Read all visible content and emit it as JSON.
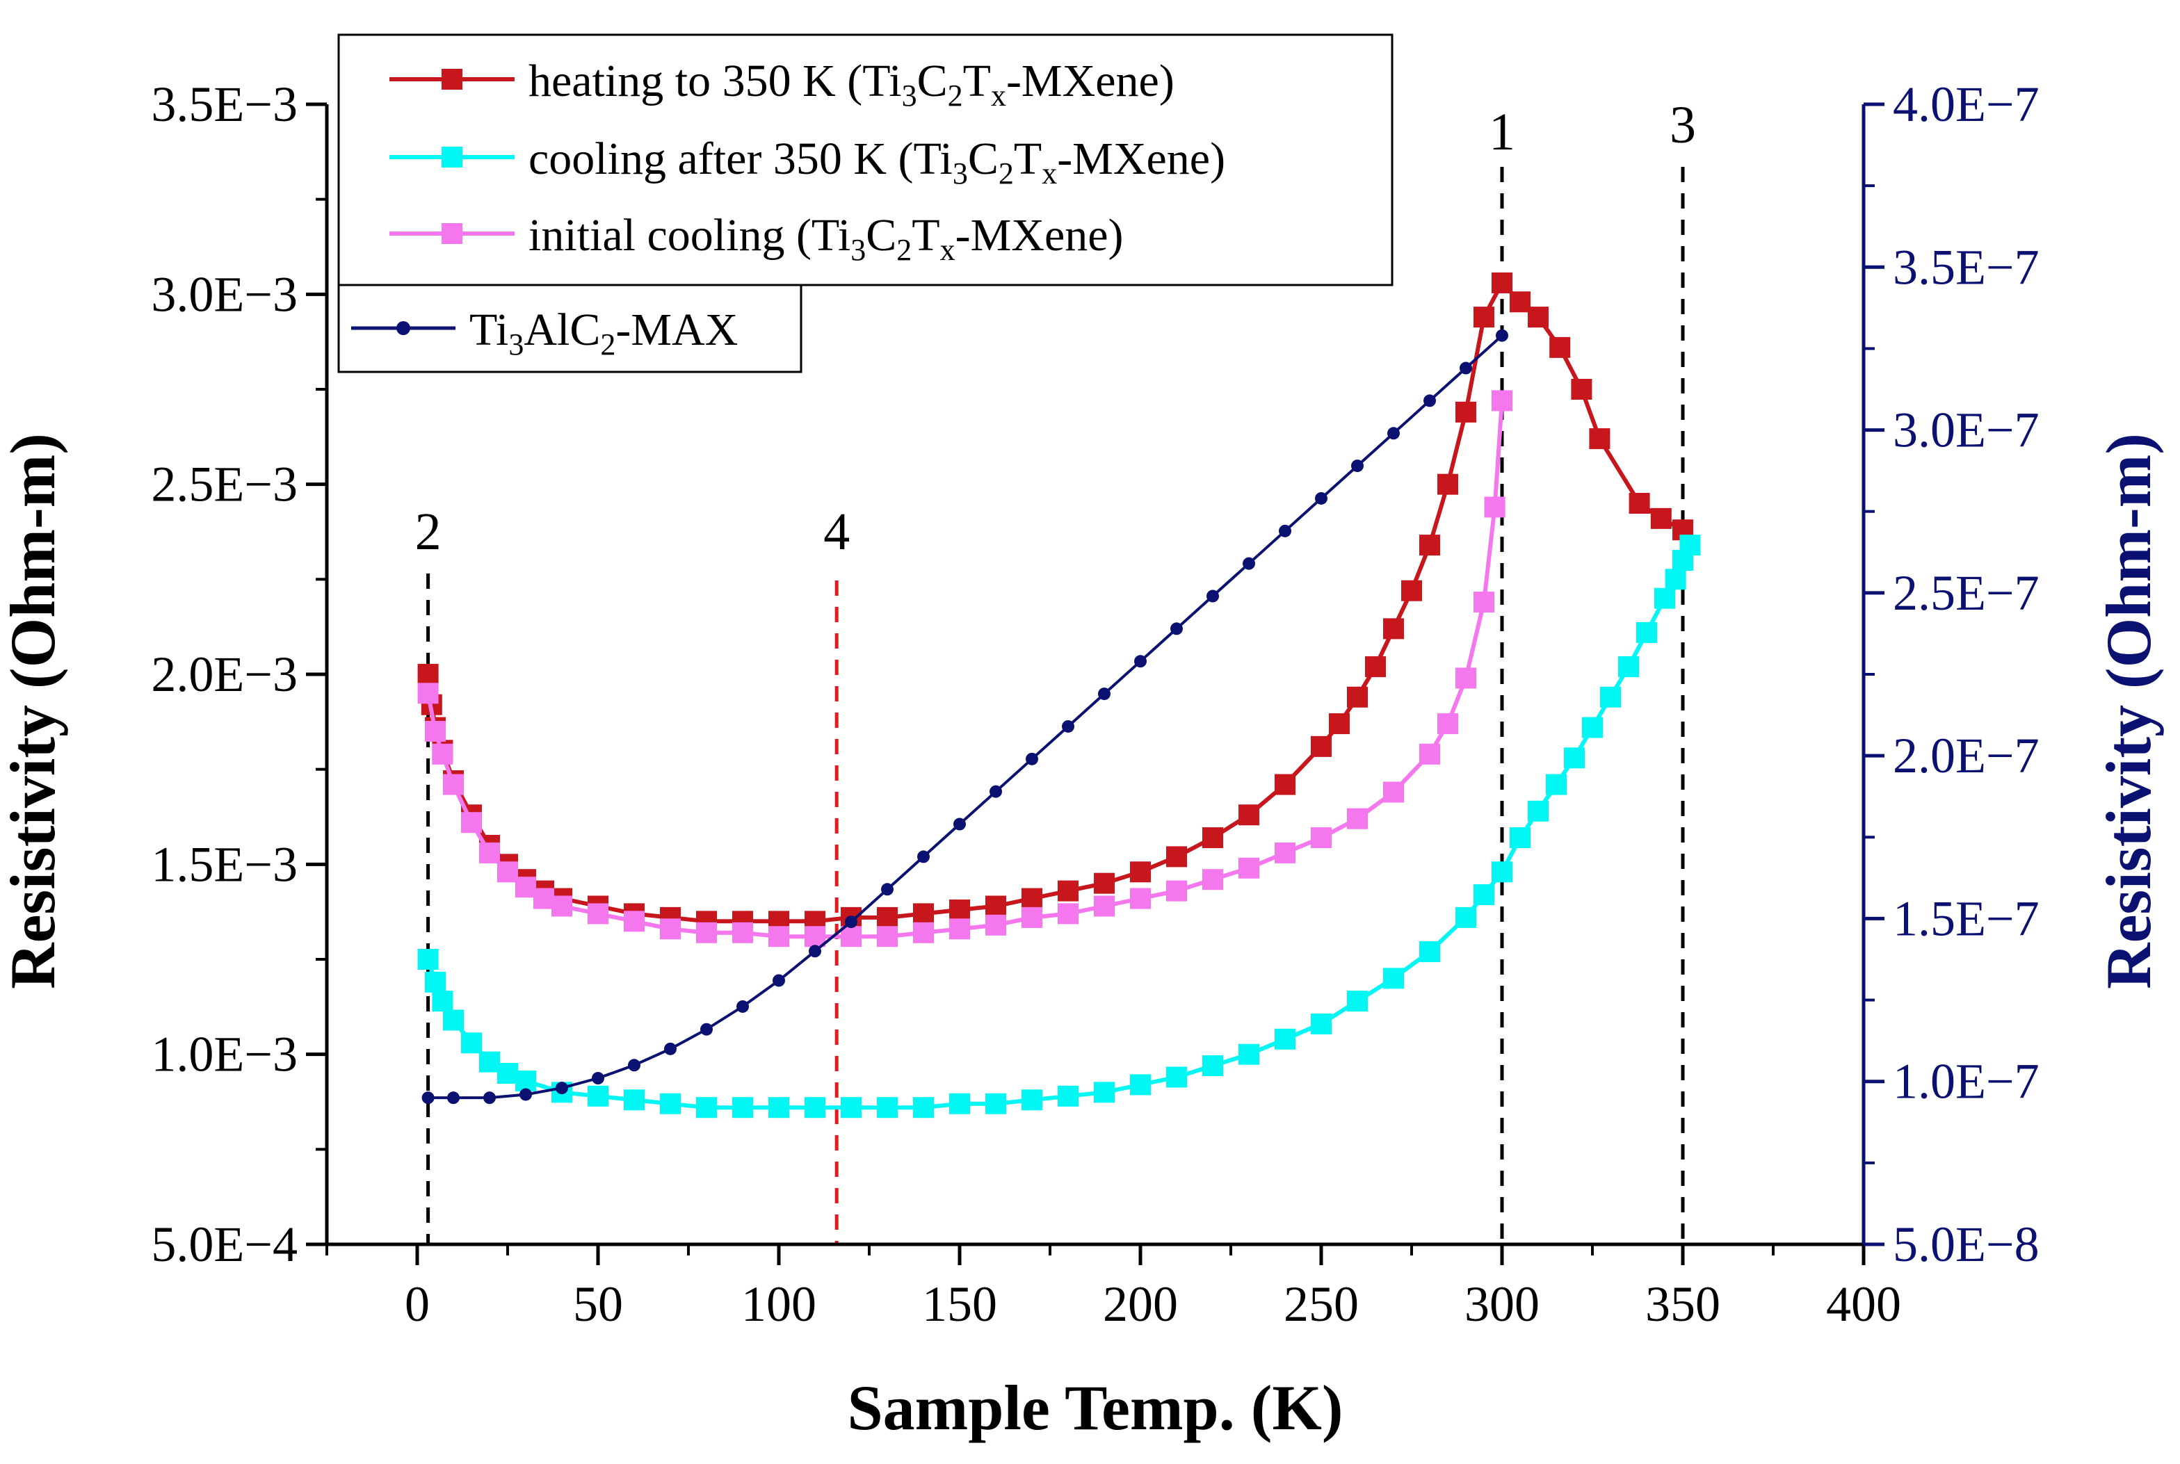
{
  "chart_data": {
    "type": "line",
    "xlabel": "Sample Temp. (K)",
    "ylabel_left": "Resistivity (Ohm-m)",
    "ylabel_right": "Resistivity (Ohm-m)",
    "xlim": [
      -25,
      400
    ],
    "ylim_left": [
      0.0005,
      0.0035
    ],
    "ylim_right": [
      5e-08,
      4e-07
    ],
    "x_ticks": [
      0,
      50,
      100,
      150,
      200,
      250,
      300,
      350,
      400
    ],
    "y_left_ticks": [
      {
        "value": 0.0005,
        "label": "5.0E−4"
      },
      {
        "value": 0.001,
        "label": "1.0E−3"
      },
      {
        "value": 0.0015,
        "label": "1.5E−3"
      },
      {
        "value": 0.002,
        "label": "2.0E−3"
      },
      {
        "value": 0.0025,
        "label": "2.5E−3"
      },
      {
        "value": 0.003,
        "label": "3.0E−3"
      },
      {
        "value": 0.0035,
        "label": "3.5E−3"
      }
    ],
    "y_right_ticks": [
      {
        "value": 5e-08,
        "label": "5.0E−8"
      },
      {
        "value": 1e-07,
        "label": "1.0E−7"
      },
      {
        "value": 1.5e-07,
        "label": "1.5E−7"
      },
      {
        "value": 2e-07,
        "label": "2.0E−7"
      },
      {
        "value": 2.5e-07,
        "label": "2.5E−7"
      },
      {
        "value": 3e-07,
        "label": "3.0E−7"
      },
      {
        "value": 3.5e-07,
        "label": "3.5E−7"
      },
      {
        "value": 4e-07,
        "label": "4.0E−7"
      }
    ],
    "legend": [
      {
        "series": "heating",
        "label": "heating to 350 K (Ti3C2Tx-MXene)"
      },
      {
        "series": "cooling_after",
        "label": "cooling after 350 K (Ti3C2Tx-MXene)"
      },
      {
        "series": "initial_cooling",
        "label": "initial cooling (Ti3C2Tx-MXene)"
      },
      {
        "series": "max",
        "label": "Ti3AlC2-MAX"
      }
    ],
    "markers": [
      {
        "label": "1",
        "x": 300,
        "color": "#000000"
      },
      {
        "label": "2",
        "x": 3,
        "color": "#000000"
      },
      {
        "label": "3",
        "x": 350,
        "color": "#000000"
      },
      {
        "label": "4",
        "x": 116,
        "color": "#e8191c"
      }
    ],
    "series": [
      {
        "name": "heating",
        "axis": "left",
        "color": "#c8161d",
        "marker": "square",
        "points": [
          [
            3,
            0.002
          ],
          [
            4,
            0.00192
          ],
          [
            5,
            0.00186
          ],
          [
            7,
            0.0018
          ],
          [
            10,
            0.00172
          ],
          [
            15,
            0.00163
          ],
          [
            20,
            0.00155
          ],
          [
            25,
            0.0015
          ],
          [
            30,
            0.00146
          ],
          [
            35,
            0.00143
          ],
          [
            40,
            0.00141
          ],
          [
            50,
            0.00139
          ],
          [
            60,
            0.00137
          ],
          [
            70,
            0.00136
          ],
          [
            80,
            0.00135
          ],
          [
            90,
            0.00135
          ],
          [
            100,
            0.00135
          ],
          [
            110,
            0.00135
          ],
          [
            120,
            0.00136
          ],
          [
            130,
            0.00136
          ],
          [
            140,
            0.00137
          ],
          [
            150,
            0.00138
          ],
          [
            160,
            0.00139
          ],
          [
            170,
            0.00141
          ],
          [
            180,
            0.00143
          ],
          [
            190,
            0.00145
          ],
          [
            200,
            0.00148
          ],
          [
            210,
            0.00152
          ],
          [
            220,
            0.00157
          ],
          [
            230,
            0.00163
          ],
          [
            240,
            0.00171
          ],
          [
            250,
            0.00181
          ],
          [
            255,
            0.00187
          ],
          [
            260,
            0.00194
          ],
          [
            265,
            0.00202
          ],
          [
            270,
            0.00212
          ],
          [
            275,
            0.00222
          ],
          [
            280,
            0.00234
          ],
          [
            285,
            0.0025
          ],
          [
            290,
            0.00269
          ],
          [
            295,
            0.00294
          ],
          [
            300,
            0.00303
          ],
          [
            305,
            0.00298
          ],
          [
            310,
            0.00294
          ],
          [
            316,
            0.00286
          ],
          [
            322,
            0.00275
          ],
          [
            327,
            0.00262
          ],
          [
            338,
            0.00245
          ],
          [
            344,
            0.00241
          ],
          [
            350,
            0.00238
          ]
        ]
      },
      {
        "name": "cooling_after",
        "axis": "left",
        "color": "#00f7f3",
        "marker": "square",
        "points": [
          [
            352,
            0.00234
          ],
          [
            350,
            0.0023
          ],
          [
            348,
            0.00225
          ],
          [
            345,
            0.0022
          ],
          [
            340,
            0.00211
          ],
          [
            335,
            0.00202
          ],
          [
            330,
            0.00194
          ],
          [
            325,
            0.00186
          ],
          [
            320,
            0.00178
          ],
          [
            315,
            0.00171
          ],
          [
            310,
            0.00164
          ],
          [
            305,
            0.00157
          ],
          [
            300,
            0.00148
          ],
          [
            295,
            0.00142
          ],
          [
            290,
            0.00136
          ],
          [
            280,
            0.00127
          ],
          [
            270,
            0.0012
          ],
          [
            260,
            0.00114
          ],
          [
            250,
            0.00108
          ],
          [
            240,
            0.00104
          ],
          [
            230,
            0.001
          ],
          [
            220,
            0.00097
          ],
          [
            210,
            0.00094
          ],
          [
            200,
            0.00092
          ],
          [
            190,
            0.0009
          ],
          [
            180,
            0.00089
          ],
          [
            170,
            0.00088
          ],
          [
            160,
            0.00087
          ],
          [
            150,
            0.00087
          ],
          [
            140,
            0.00086
          ],
          [
            130,
            0.00086
          ],
          [
            120,
            0.00086
          ],
          [
            110,
            0.00086
          ],
          [
            100,
            0.00086
          ],
          [
            90,
            0.00086
          ],
          [
            80,
            0.00086
          ],
          [
            70,
            0.00087
          ],
          [
            60,
            0.00088
          ],
          [
            50,
            0.00089
          ],
          [
            40,
            0.0009
          ],
          [
            30,
            0.00093
          ],
          [
            25,
            0.00095
          ],
          [
            20,
            0.00098
          ],
          [
            15,
            0.00103
          ],
          [
            10,
            0.00109
          ],
          [
            7,
            0.00114
          ],
          [
            5,
            0.00119
          ],
          [
            3,
            0.00125
          ]
        ]
      },
      {
        "name": "initial_cooling",
        "axis": "left",
        "color": "#f577ee",
        "marker": "square",
        "points": [
          [
            300,
            0.00272
          ],
          [
            298,
            0.00244
          ],
          [
            295,
            0.00219
          ],
          [
            290,
            0.00199
          ],
          [
            285,
            0.00187
          ],
          [
            280,
            0.00179
          ],
          [
            270,
            0.00169
          ],
          [
            260,
            0.00162
          ],
          [
            250,
            0.00157
          ],
          [
            240,
            0.00153
          ],
          [
            230,
            0.00149
          ],
          [
            220,
            0.00146
          ],
          [
            210,
            0.00143
          ],
          [
            200,
            0.00141
          ],
          [
            190,
            0.00139
          ],
          [
            180,
            0.00137
          ],
          [
            170,
            0.00136
          ],
          [
            160,
            0.00134
          ],
          [
            150,
            0.00133
          ],
          [
            140,
            0.00132
          ],
          [
            130,
            0.00131
          ],
          [
            120,
            0.00131
          ],
          [
            110,
            0.00131
          ],
          [
            100,
            0.00131
          ],
          [
            90,
            0.00132
          ],
          [
            80,
            0.00132
          ],
          [
            70,
            0.00133
          ],
          [
            60,
            0.00135
          ],
          [
            50,
            0.00137
          ],
          [
            40,
            0.00139
          ],
          [
            35,
            0.00141
          ],
          [
            30,
            0.00144
          ],
          [
            25,
            0.00148
          ],
          [
            20,
            0.00153
          ],
          [
            15,
            0.00161
          ],
          [
            10,
            0.00171
          ],
          [
            7,
            0.00179
          ],
          [
            5,
            0.00185
          ],
          [
            3,
            0.00195
          ]
        ]
      },
      {
        "name": "max",
        "axis": "right",
        "color": "#0b1170",
        "marker": "circle",
        "points": [
          [
            3,
            9.5e-08
          ],
          [
            10,
            9.5e-08
          ],
          [
            20,
            9.5e-08
          ],
          [
            30,
            9.6e-08
          ],
          [
            40,
            9.8e-08
          ],
          [
            50,
            1.01e-07
          ],
          [
            60,
            1.05e-07
          ],
          [
            70,
            1.1e-07
          ],
          [
            80,
            1.16e-07
          ],
          [
            90,
            1.23e-07
          ],
          [
            100,
            1.31e-07
          ],
          [
            110,
            1.4e-07
          ],
          [
            120,
            1.49e-07
          ],
          [
            130,
            1.59e-07
          ],
          [
            140,
            1.69e-07
          ],
          [
            150,
            1.79e-07
          ],
          [
            160,
            1.89e-07
          ],
          [
            170,
            1.99e-07
          ],
          [
            180,
            2.09e-07
          ],
          [
            190,
            2.19e-07
          ],
          [
            200,
            2.29e-07
          ],
          [
            210,
            2.39e-07
          ],
          [
            220,
            2.49e-07
          ],
          [
            230,
            2.59e-07
          ],
          [
            240,
            2.69e-07
          ],
          [
            250,
            2.79e-07
          ],
          [
            260,
            2.89e-07
          ],
          [
            270,
            2.99e-07
          ],
          [
            280,
            3.09e-07
          ],
          [
            290,
            3.19e-07
          ],
          [
            300,
            3.29e-07
          ]
        ]
      }
    ]
  }
}
